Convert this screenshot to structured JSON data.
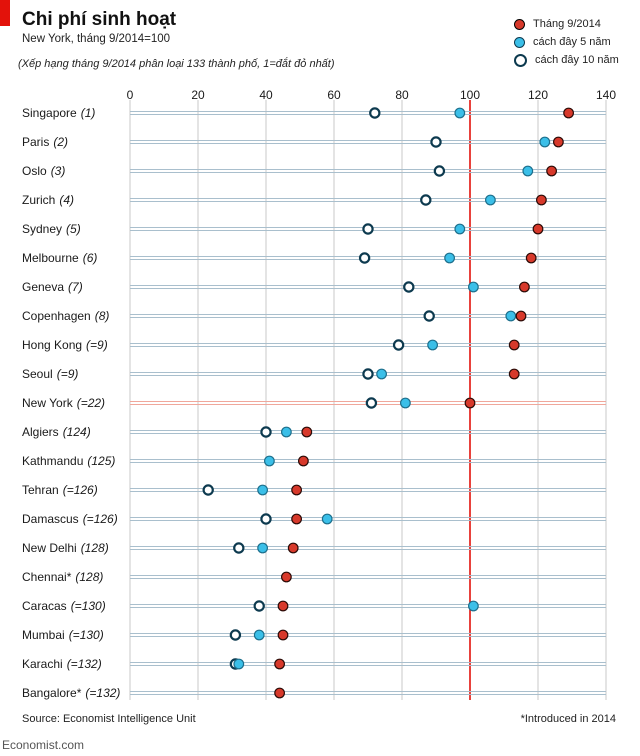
{
  "header": {
    "title": "Chi phí sinh hoạt",
    "subtitle": "New York, tháng 9/2014=100",
    "note": "(Xếp hạng tháng 9/2014 phân loại 133 thành phố, 1=đắt đỏ nhất)"
  },
  "legend": [
    {
      "label": "Tháng 9/2014",
      "color": "#d7392b"
    },
    {
      "label": "cách đây 5 năm",
      "color": "#3bbfe8"
    },
    {
      "label": "cách đây 10 năm",
      "color": "#ffffff"
    }
  ],
  "footer": {
    "source": "Source: Economist Intelligence Unit",
    "footnote": "*Introduced in 2014",
    "brand": "Economist.com"
  },
  "colors": {
    "now": "#d7392b",
    "five_years": "#3bbfe8",
    "ten_years_fill": "#ffffff",
    "ten_years_stroke": "#0d3a4f",
    "reference": "#e3120b",
    "row_line": "#a9bfcd",
    "grid": "#c8c8c8"
  },
  "chart_data": {
    "type": "scatter",
    "xlim": [
      0,
      140
    ],
    "xticks": [
      "0",
      "20",
      "40",
      "60",
      "80",
      "100",
      "120",
      "140"
    ],
    "reference_value": 100,
    "series": [
      {
        "name": "Tháng 9/2014",
        "key": "now"
      },
      {
        "name": "cách đây 5 năm",
        "key": "five"
      },
      {
        "name": "cách đây 10 năm",
        "key": "ten"
      }
    ],
    "rows": [
      {
        "city": "Singapore",
        "rank": "(1)",
        "now": 129,
        "five": 97,
        "ten": 72
      },
      {
        "city": "Paris",
        "rank": "(2)",
        "now": 126,
        "five": 122,
        "ten": 90
      },
      {
        "city": "Oslo",
        "rank": "(3)",
        "now": 124,
        "five": 117,
        "ten": 91
      },
      {
        "city": "Zurich",
        "rank": "(4)",
        "now": 121,
        "five": 106,
        "ten": 87
      },
      {
        "city": "Sydney",
        "rank": "(5)",
        "now": 120,
        "five": 97,
        "ten": 70
      },
      {
        "city": "Melbourne",
        "rank": "(6)",
        "now": 118,
        "five": 94,
        "ten": 69
      },
      {
        "city": "Geneva",
        "rank": "(7)",
        "now": 116,
        "five": 101,
        "ten": 82
      },
      {
        "city": "Copenhagen",
        "rank": "(8)",
        "now": 115,
        "five": 112,
        "ten": 88
      },
      {
        "city": "Hong Kong",
        "rank": "(=9)",
        "now": 113,
        "five": 89,
        "ten": 79
      },
      {
        "city": "Seoul",
        "rank": "(=9)",
        "now": 113,
        "five": 74,
        "ten": 70
      },
      {
        "city": "New York",
        "rank": "(=22)",
        "now": 100,
        "five": 81,
        "ten": 71
      },
      {
        "city": "Algiers",
        "rank": "(124)",
        "now": 52,
        "five": 46,
        "ten": 40
      },
      {
        "city": "Kathmandu",
        "rank": "(125)",
        "now": 51,
        "five": 41,
        "ten": null
      },
      {
        "city": "Tehran",
        "rank": "(=126)",
        "now": 49,
        "five": 39,
        "ten": 23
      },
      {
        "city": "Damascus",
        "rank": "(=126)",
        "now": 49,
        "five": 58,
        "ten": 40
      },
      {
        "city": "New Delhi",
        "rank": "(128)",
        "now": 48,
        "five": 39,
        "ten": 32
      },
      {
        "city": "Chennai*",
        "rank": "(128)",
        "now": 46,
        "five": null,
        "ten": null
      },
      {
        "city": "Caracas",
        "rank": "(=130)",
        "now": 45,
        "five": 101,
        "ten": 38
      },
      {
        "city": "Mumbai",
        "rank": "(=130)",
        "now": 45,
        "five": 38,
        "ten": 31
      },
      {
        "city": "Karachi",
        "rank": "(=132)",
        "now": 44,
        "five": 32,
        "ten": 31
      },
      {
        "city": "Bangalore*",
        "rank": "(=132)",
        "now": 44,
        "five": null,
        "ten": null
      }
    ]
  }
}
